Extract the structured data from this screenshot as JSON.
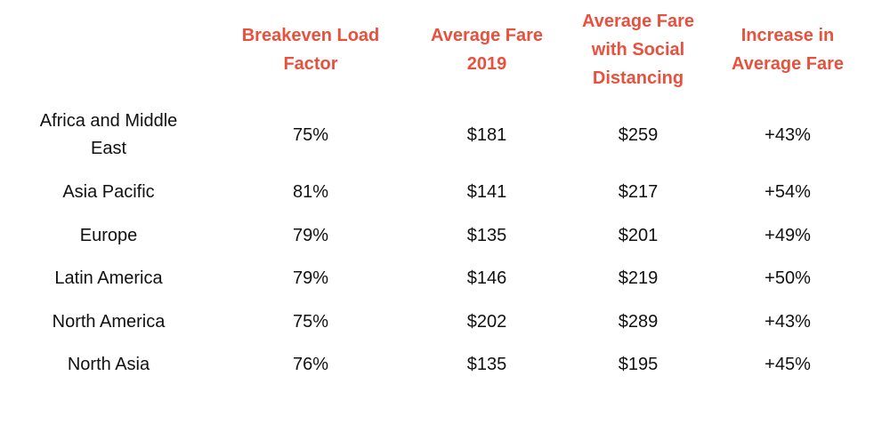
{
  "chart_data": {
    "type": "table",
    "columns": [
      {
        "key": "region",
        "label": ""
      },
      {
        "key": "breakeven_load_factor",
        "label_lines": [
          "Breakeven Load",
          "Factor"
        ]
      },
      {
        "key": "avg_fare_2019",
        "label_lines": [
          "Average Fare",
          "2019"
        ]
      },
      {
        "key": "avg_fare_social_distancing",
        "label_lines": [
          "Average Fare",
          "with Social",
          "Distancing"
        ]
      },
      {
        "key": "increase_avg_fare",
        "label_lines": [
          "Increase in",
          "Average Fare"
        ]
      }
    ],
    "rows": [
      {
        "region_lines": [
          "Africa and Middle",
          "East"
        ],
        "values": [
          "75%",
          "$181",
          "$259",
          "+43%"
        ]
      },
      {
        "region_lines": [
          "Asia Pacific"
        ],
        "values": [
          "81%",
          "$141",
          "$217",
          "+54%"
        ]
      },
      {
        "region_lines": [
          "Europe"
        ],
        "values": [
          "79%",
          "$135",
          "$201",
          "+49%"
        ]
      },
      {
        "region_lines": [
          "Latin America"
        ],
        "values": [
          "79%",
          "$146",
          "$219",
          "+50%"
        ]
      },
      {
        "region_lines": [
          "North America"
        ],
        "values": [
          "75%",
          "$202",
          "$289",
          "+43%"
        ]
      },
      {
        "region_lines": [
          "North Asia"
        ],
        "values": [
          "76%",
          "$135",
          "$195",
          "+45%"
        ]
      }
    ],
    "header_color": "#e8513d",
    "text_color": "#111111"
  }
}
